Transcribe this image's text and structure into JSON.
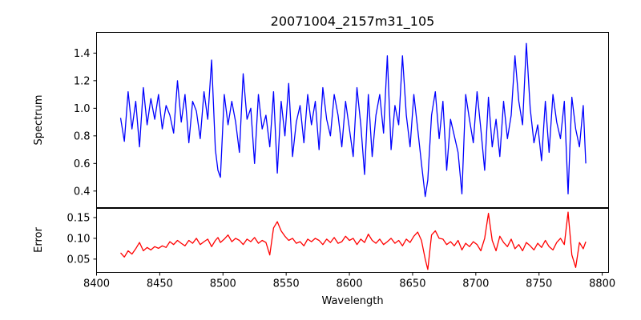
{
  "chart_data": [
    {
      "type": "line",
      "title": "20071004_2157m31_105",
      "xlabel": "",
      "ylabel": "Spectrum",
      "xlim": [
        8400,
        8805
      ],
      "ylim": [
        0.28,
        1.55
      ],
      "yticks": [
        0.4,
        0.6,
        0.8,
        1.0,
        1.2,
        1.4
      ],
      "grid": false,
      "series": [
        {
          "color": "#0000ff",
          "x": [
            8419,
            8422,
            8425,
            8428,
            8431,
            8434,
            8437,
            8440,
            8443,
            8446,
            8449,
            8452,
            8455,
            8458,
            8461,
            8464,
            8467,
            8470,
            8473,
            8476,
            8479,
            8482,
            8485,
            8488,
            8491,
            8494,
            8496,
            8498,
            8501,
            8504,
            8507,
            8510,
            8513,
            8516,
            8519,
            8522,
            8525,
            8528,
            8531,
            8534,
            8537,
            8540,
            8543,
            8546,
            8549,
            8552,
            8555,
            8558,
            8561,
            8564,
            8567,
            8570,
            8573,
            8576,
            8579,
            8582,
            8585,
            8588,
            8591,
            8594,
            8597,
            8600,
            8603,
            8606,
            8609,
            8612,
            8615,
            8618,
            8621,
            8624,
            8627,
            8630,
            8633,
            8636,
            8639,
            8642,
            8645,
            8648,
            8651,
            8654,
            8657,
            8660,
            8662,
            8665,
            8668,
            8671,
            8674,
            8677,
            8680,
            8683,
            8686,
            8689,
            8692,
            8695,
            8698,
            8701,
            8704,
            8707,
            8710,
            8713,
            8716,
            8719,
            8722,
            8725,
            8728,
            8731,
            8734,
            8737,
            8740,
            8743,
            8746,
            8749,
            8752,
            8755,
            8758,
            8761,
            8764,
            8767,
            8770,
            8773,
            8776,
            8779,
            8782,
            8785,
            8787
          ],
          "y": [
            0.93,
            0.76,
            1.12,
            0.85,
            1.05,
            0.72,
            1.15,
            0.88,
            1.07,
            0.92,
            1.1,
            0.85,
            1.02,
            0.95,
            0.82,
            1.2,
            0.9,
            1.1,
            0.75,
            1.05,
            0.98,
            0.78,
            1.12,
            0.92,
            1.35,
            0.7,
            0.55,
            0.5,
            1.1,
            0.88,
            1.05,
            0.9,
            0.68,
            1.25,
            0.92,
            1.0,
            0.6,
            1.1,
            0.85,
            0.95,
            0.72,
            1.12,
            0.53,
            1.05,
            0.8,
            1.18,
            0.65,
            0.9,
            1.02,
            0.75,
            1.1,
            0.88,
            1.05,
            0.7,
            1.15,
            0.92,
            0.8,
            1.1,
            0.95,
            0.72,
            1.05,
            0.85,
            0.65,
            1.15,
            0.88,
            0.52,
            1.1,
            0.65,
            0.95,
            1.1,
            0.82,
            1.38,
            0.7,
            1.02,
            0.88,
            1.38,
            0.95,
            0.72,
            1.1,
            0.85,
            0.6,
            0.36,
            0.48,
            0.95,
            1.12,
            0.78,
            1.05,
            0.55,
            0.92,
            0.8,
            0.68,
            0.38,
            1.1,
            0.92,
            0.75,
            1.12,
            0.85,
            0.55,
            1.08,
            0.72,
            0.92,
            0.65,
            1.05,
            0.78,
            0.95,
            1.38,
            1.05,
            0.88,
            1.47,
            1.0,
            0.75,
            0.88,
            0.62,
            1.05,
            0.68,
            1.1,
            0.9,
            0.78,
            1.05,
            0.38,
            1.08,
            0.85,
            0.72,
            1.02,
            0.6
          ]
        }
      ]
    },
    {
      "type": "line",
      "title": "",
      "xlabel": "Wavelength",
      "ylabel": "Error",
      "xlim": [
        8400,
        8805
      ],
      "ylim": [
        0.018,
        0.172
      ],
      "yticks": [
        0.05,
        0.1,
        0.15
      ],
      "xticks": [
        8400,
        8450,
        8500,
        8550,
        8600,
        8650,
        8700,
        8750,
        8800
      ],
      "grid": false,
      "series": [
        {
          "color": "#ff0000",
          "x": [
            8419,
            8422,
            8425,
            8428,
            8431,
            8434,
            8437,
            8440,
            8443,
            8446,
            8449,
            8452,
            8455,
            8458,
            8461,
            8464,
            8467,
            8470,
            8473,
            8476,
            8479,
            8482,
            8485,
            8488,
            8491,
            8494,
            8496,
            8498,
            8501,
            8504,
            8507,
            8510,
            8513,
            8516,
            8519,
            8522,
            8525,
            8528,
            8531,
            8534,
            8537,
            8540,
            8543,
            8546,
            8549,
            8552,
            8555,
            8558,
            8561,
            8564,
            8567,
            8570,
            8573,
            8576,
            8579,
            8582,
            8585,
            8588,
            8591,
            8594,
            8597,
            8600,
            8603,
            8606,
            8609,
            8612,
            8615,
            8618,
            8621,
            8624,
            8627,
            8630,
            8633,
            8636,
            8639,
            8642,
            8645,
            8648,
            8651,
            8654,
            8657,
            8660,
            8662,
            8665,
            8668,
            8671,
            8674,
            8677,
            8680,
            8683,
            8686,
            8689,
            8692,
            8695,
            8698,
            8701,
            8704,
            8707,
            8710,
            8713,
            8716,
            8719,
            8722,
            8725,
            8728,
            8731,
            8734,
            8737,
            8740,
            8743,
            8746,
            8749,
            8752,
            8755,
            8758,
            8761,
            8764,
            8767,
            8770,
            8773,
            8776,
            8779,
            8782,
            8785,
            8787
          ],
          "y": [
            0.065,
            0.055,
            0.07,
            0.062,
            0.075,
            0.09,
            0.07,
            0.078,
            0.072,
            0.08,
            0.076,
            0.082,
            0.078,
            0.092,
            0.085,
            0.095,
            0.088,
            0.082,
            0.095,
            0.088,
            0.1,
            0.085,
            0.092,
            0.098,
            0.08,
            0.095,
            0.102,
            0.09,
            0.098,
            0.108,
            0.092,
            0.1,
            0.095,
            0.085,
            0.098,
            0.092,
            0.102,
            0.088,
            0.095,
            0.09,
            0.06,
            0.125,
            0.14,
            0.118,
            0.105,
            0.095,
            0.1,
            0.088,
            0.092,
            0.082,
            0.098,
            0.092,
            0.1,
            0.095,
            0.085,
            0.098,
            0.09,
            0.102,
            0.088,
            0.092,
            0.105,
            0.095,
            0.1,
            0.085,
            0.098,
            0.09,
            0.11,
            0.095,
            0.088,
            0.098,
            0.085,
            0.092,
            0.1,
            0.088,
            0.095,
            0.082,
            0.098,
            0.09,
            0.105,
            0.115,
            0.095,
            0.05,
            0.025,
            0.108,
            0.118,
            0.1,
            0.098,
            0.085,
            0.092,
            0.082,
            0.095,
            0.072,
            0.088,
            0.08,
            0.092,
            0.085,
            0.07,
            0.1,
            0.16,
            0.095,
            0.07,
            0.105,
            0.09,
            0.08,
            0.098,
            0.075,
            0.085,
            0.07,
            0.09,
            0.082,
            0.072,
            0.088,
            0.078,
            0.095,
            0.08,
            0.072,
            0.09,
            0.1,
            0.085,
            0.163,
            0.06,
            0.03,
            0.09,
            0.075,
            0.092
          ]
        }
      ]
    }
  ]
}
